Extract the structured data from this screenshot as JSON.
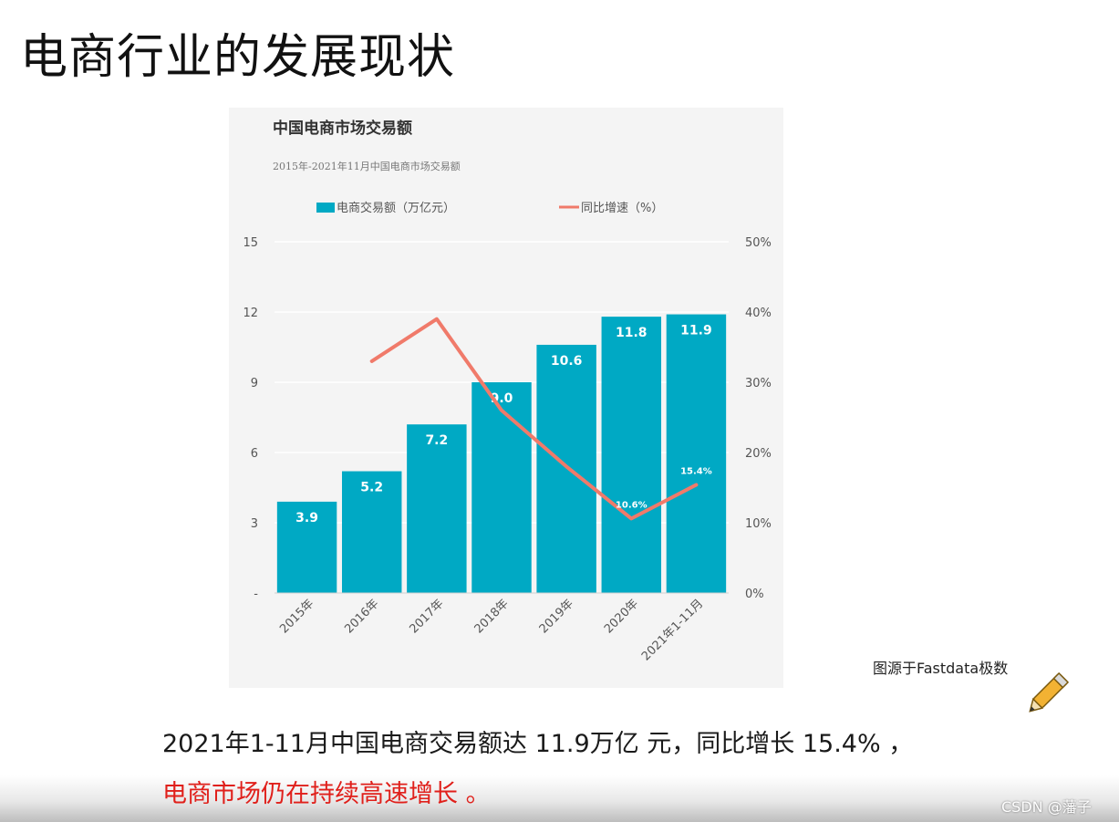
{
  "slide": {
    "title": "电商行业的发展现状",
    "source_note": "图源于Fastdata极数",
    "summary_line": "2021年1-11月中国电商交易额达 11.9万亿 元，同比增长 15.4% ，",
    "highlight_line": "电商市场仍在持续高速增长 。",
    "watermark": "CSDN @藩子"
  },
  "chart_data": {
    "type": "bar",
    "title": "中国电商市场交易额",
    "subtitle": "2015年-2021年11月中国电商市场交易额",
    "categories": [
      "2015年",
      "2016年",
      "2017年",
      "2018年",
      "2019年",
      "2020年",
      "2021年1-11月"
    ],
    "series": [
      {
        "name": "电商交易额（万亿元）",
        "type": "bar",
        "axis": "left",
        "color": "#00a9c4",
        "values": [
          3.9,
          5.2,
          7.2,
          9.0,
          10.6,
          11.8,
          11.9
        ],
        "labels": [
          "3.9",
          "5.2",
          "7.2",
          "9.0",
          "10.6",
          "11.8",
          "11.9"
        ]
      },
      {
        "name": "同比增速（%）",
        "type": "line",
        "axis": "right",
        "color": "#f07a6a",
        "values": [
          null,
          33,
          39,
          26,
          18,
          10.6,
          15.4
        ],
        "point_labels": [
          null,
          null,
          null,
          null,
          null,
          "10.6%",
          "15.4%"
        ]
      }
    ],
    "left_axis": {
      "min": 0,
      "max": 15,
      "ticks": [
        "-",
        "3",
        "6",
        "9",
        "12",
        "15"
      ]
    },
    "right_axis": {
      "min": 0,
      "max": 50,
      "ticks": [
        "0%",
        "10%",
        "20%",
        "30%",
        "40%",
        "50%"
      ]
    },
    "grid": true,
    "legend_position": "top"
  }
}
